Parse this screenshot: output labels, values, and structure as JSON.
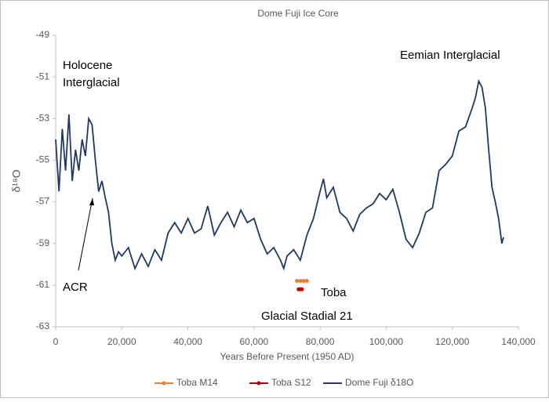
{
  "chart_data": {
    "type": "line",
    "title": "Dome Fuji Ice Core",
    "x_label": "Years Before Present (1950 AD)",
    "y_label": "δ¹⁸O",
    "xlim": [
      0,
      140000
    ],
    "ylim": [
      -63,
      -49
    ],
    "xticks": [
      0,
      {
        "value": 20000,
        "label": "20,000"
      },
      {
        "value": 40000,
        "label": "40,000"
      },
      {
        "value": 60000,
        "label": "60,000"
      },
      {
        "value": 80000,
        "label": "80,000"
      },
      {
        "value": 100000,
        "label": "100,000"
      },
      {
        "value": 120000,
        "label": "120,000"
      },
      {
        "value": 140000,
        "label": "140,000"
      }
    ],
    "yticks": [
      -49,
      -51,
      -53,
      -55,
      -57,
      -59,
      -61,
      -63
    ],
    "legend": "bottom",
    "series": [
      {
        "name": "Toba M14",
        "color": "#ed7d31",
        "mode": "points",
        "x": [
          73000,
          74000,
          75000,
          76000
        ],
        "values": [
          -60.8,
          -60.8,
          -60.8,
          -60.8
        ]
      },
      {
        "name": "Toba S12",
        "color": "#c00000",
        "mode": "points",
        "x": [
          73500,
          74000,
          74500
        ],
        "values": [
          -61.2,
          -61.2,
          -61.2
        ]
      },
      {
        "name": "Dome Fuji δ18O",
        "color": "#1f3864",
        "mode": "line",
        "x": [
          0,
          1000,
          2000,
          3000,
          4000,
          5000,
          6000,
          7000,
          8000,
          9000,
          10000,
          11000,
          12000,
          13000,
          14000,
          15000,
          16000,
          17000,
          18000,
          19000,
          20000,
          22000,
          24000,
          26000,
          28000,
          30000,
          32000,
          34000,
          36000,
          38000,
          40000,
          42000,
          44000,
          46000,
          48000,
          50000,
          52000,
          54000,
          56000,
          58000,
          60000,
          62000,
          64000,
          66000,
          68000,
          69000,
          70000,
          72000,
          74000,
          76000,
          78000,
          80000,
          81000,
          82000,
          84000,
          86000,
          88000,
          90000,
          92000,
          94000,
          96000,
          98000,
          100000,
          102000,
          104000,
          106000,
          108000,
          110000,
          112000,
          114000,
          116000,
          118000,
          120000,
          122000,
          124000,
          126000,
          127000,
          128000,
          129000,
          130000,
          131000,
          132000,
          133000,
          134000,
          135000,
          135500
        ],
        "values": [
          -54,
          -56.5,
          -53.5,
          -55.5,
          -52.8,
          -56,
          -54.5,
          -55.5,
          -54,
          -54.8,
          -53,
          -53.3,
          -55,
          -56.5,
          -56,
          -56.8,
          -57.5,
          -59,
          -59.8,
          -59.4,
          -59.6,
          -59.2,
          -60.2,
          -59.5,
          -60.1,
          -59.3,
          -59.8,
          -58.5,
          -58,
          -58.5,
          -57.8,
          -58.5,
          -58.3,
          -57.2,
          -58.6,
          -58,
          -57.5,
          -58.2,
          -57.4,
          -58,
          -57.8,
          -58.8,
          -59.5,
          -59.2,
          -59.8,
          -60.2,
          -59.6,
          -59.3,
          -59.8,
          -58.6,
          -57.8,
          -56.5,
          -55.9,
          -56.8,
          -56.3,
          -57.5,
          -57.8,
          -58.4,
          -57.6,
          -57.3,
          -57.1,
          -56.6,
          -56.9,
          -56.4,
          -57.5,
          -58.8,
          -59.2,
          -58.5,
          -57.5,
          -57.3,
          -55.5,
          -55.2,
          -54.8,
          -53.6,
          -53.4,
          -52.5,
          -52,
          -51.2,
          -51.5,
          -52.5,
          -54.5,
          -56.3,
          -57,
          -57.8,
          -59,
          -58.7
        ]
      }
    ],
    "annotations": [
      {
        "lines": [
          "Holocene",
          "Interglacial"
        ]
      },
      {
        "lines": [
          "Eemian Interglacial"
        ]
      },
      {
        "lines": [
          "ACR"
        ]
      },
      {
        "lines": [
          "Toba"
        ]
      },
      {
        "lines": [
          "Glacial Stadial 21"
        ]
      }
    ]
  }
}
